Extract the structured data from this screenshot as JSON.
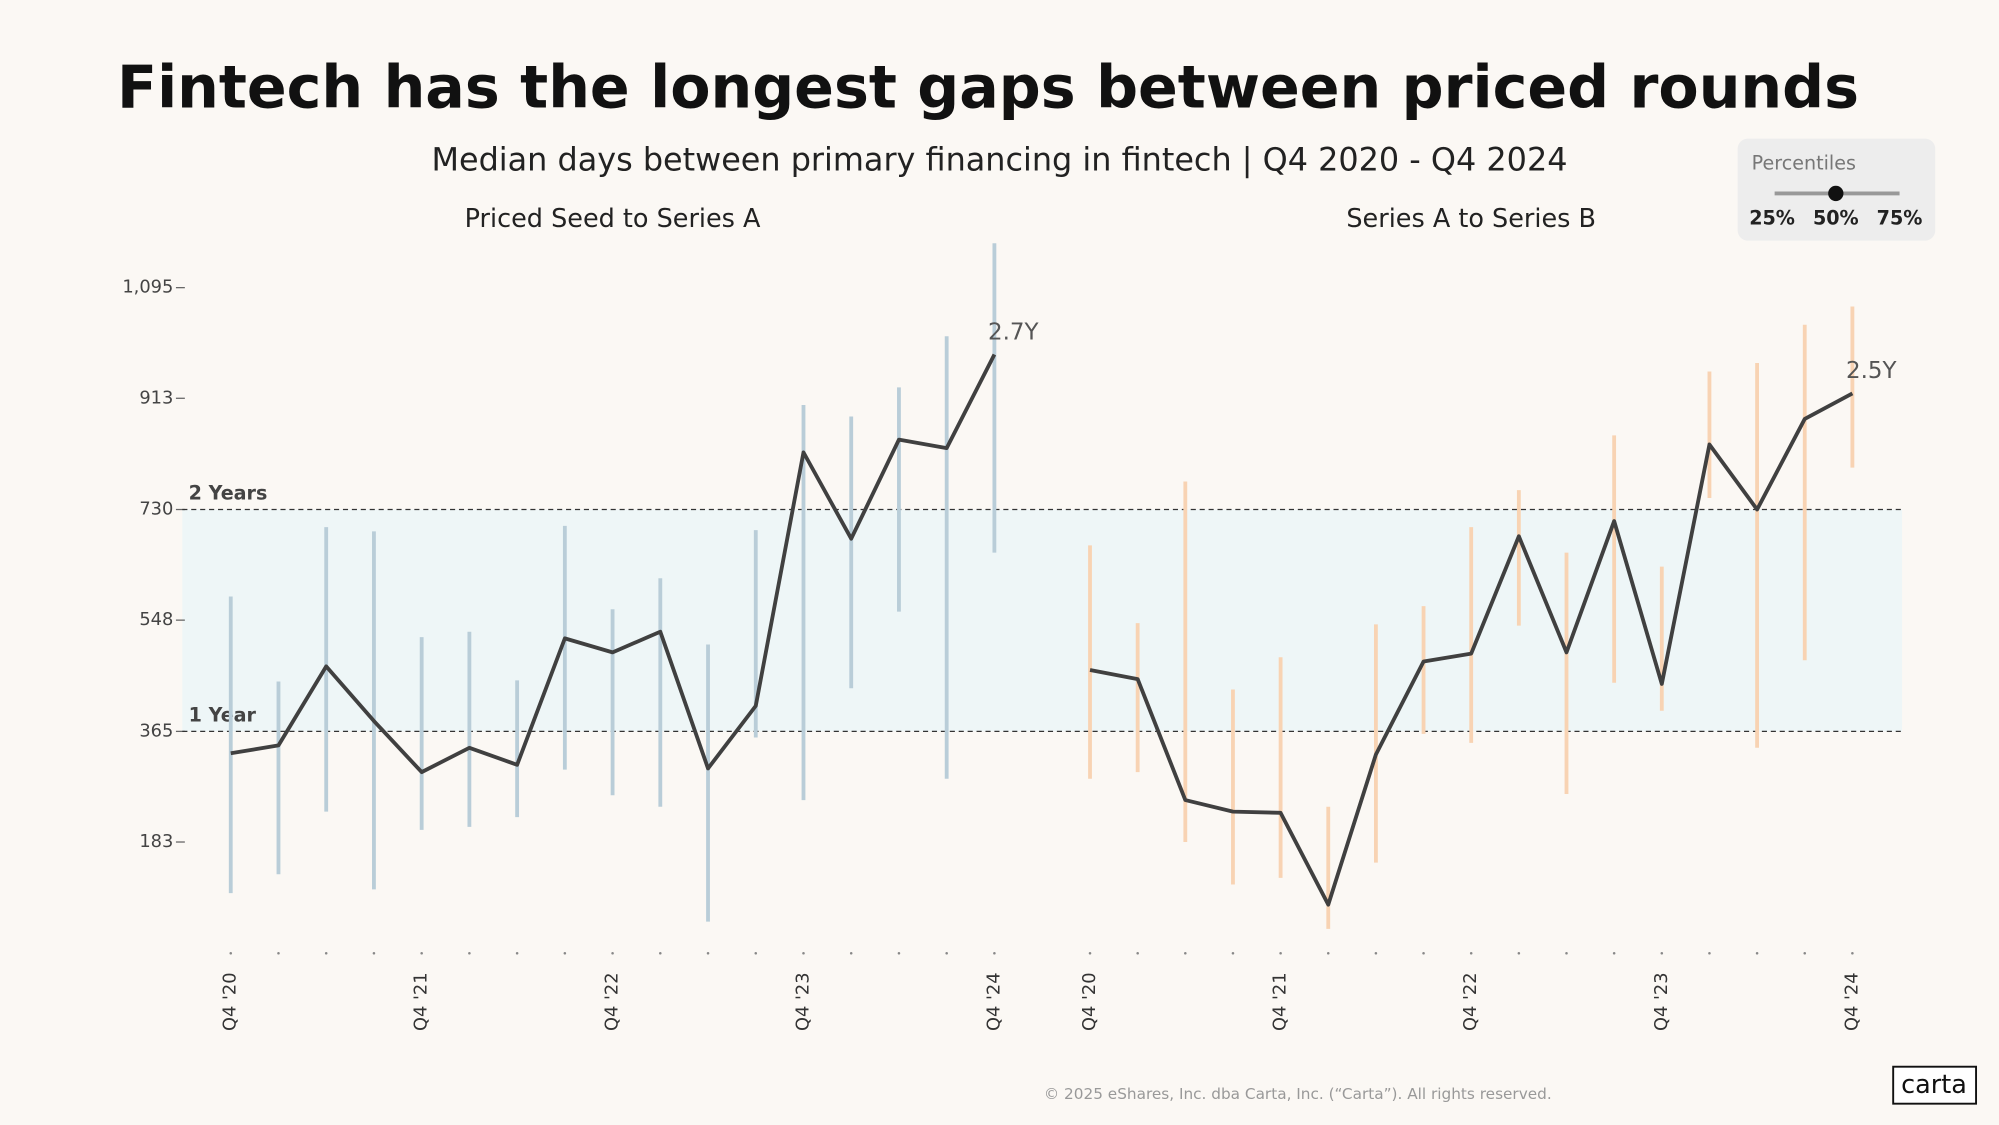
{
  "chart_data": {
    "type": "line",
    "title": "Fintech has the longest gaps between priced rounds",
    "subtitle": "Median days between primary financing in fintech  | Q4 2020 - Q4 2024",
    "ylim": [
      0,
      1185
    ],
    "yticks": [
      {
        "value": 1095,
        "label": "1,095"
      },
      913,
      730,
      548,
      365,
      183
    ],
    "reference_lines": [
      {
        "value": 730,
        "label": "2 Years"
      },
      {
        "value": 365,
        "label": "1 Year"
      }
    ],
    "band_color": "#eef6f7",
    "line_color": "#404040",
    "panels": [
      {
        "title": "Priced Seed to Series A",
        "color": "#b9cdd8",
        "categories": [
          "Q4 '20",
          null,
          null,
          null,
          "Q4 '21",
          null,
          null,
          null,
          "Q4 '22",
          null,
          null,
          null,
          "Q4 '23",
          null,
          null,
          null,
          "Q4 '24"
        ],
        "values": [
          329,
          342,
          472,
          382,
          298,
          338,
          310,
          518,
          495,
          529,
          304,
          407,
          824,
          682,
          845,
          831,
          985
        ],
        "low": [
          99,
          130,
          233,
          105,
          203,
          208,
          224,
          302,
          260,
          241,
          52,
          355,
          252,
          436,
          562,
          287,
          659
        ],
        "high": [
          587,
          447,
          701,
          694,
          520,
          529,
          449,
          703,
          566,
          617,
          508,
          696,
          902,
          883,
          931,
          1015,
          1168
        ],
        "value_labels": [
          null,
          null,
          null,
          null,
          null,
          null,
          null,
          null,
          null,
          null,
          null,
          null,
          null,
          null,
          null,
          null,
          "2.7Y"
        ]
      },
      {
        "title": "Series A to Series B",
        "color": "#f8d3b3",
        "categories": [
          "Q4 '20",
          null,
          null,
          null,
          "Q4 '21",
          null,
          null,
          null,
          "Q4 '22",
          null,
          null,
          null,
          "Q4 '23",
          null,
          null,
          null,
          "Q4 '24"
        ],
        "values": [
          466,
          451,
          252,
          233,
          231,
          80,
          327,
          480,
          493,
          686,
          495,
          711,
          443,
          837,
          730,
          879,
          921
        ],
        "low": [
          287,
          298,
          183,
          113,
          124,
          40,
          149,
          361,
          346,
          539,
          262,
          445,
          399,
          749,
          338,
          482,
          799
        ],
        "high": [
          671,
          543,
          776,
          434,
          487,
          241,
          541,
          571,
          701,
          762,
          659,
          852,
          636,
          957,
          971,
          1034,
          1064
        ],
        "value_labels": [
          null,
          null,
          null,
          null,
          null,
          null,
          null,
          null,
          null,
          null,
          null,
          null,
          null,
          null,
          null,
          null,
          "2.5Y"
        ]
      }
    ]
  },
  "percentile_control": {
    "label": "Percentiles",
    "options": [
      "25%",
      "50%",
      "75%"
    ],
    "selected": 1
  },
  "footer": {
    "copyright": "© 2025 eShares, Inc. dba Carta, Inc. (“Carta”). All rights reserved.",
    "logo": "carta"
  }
}
